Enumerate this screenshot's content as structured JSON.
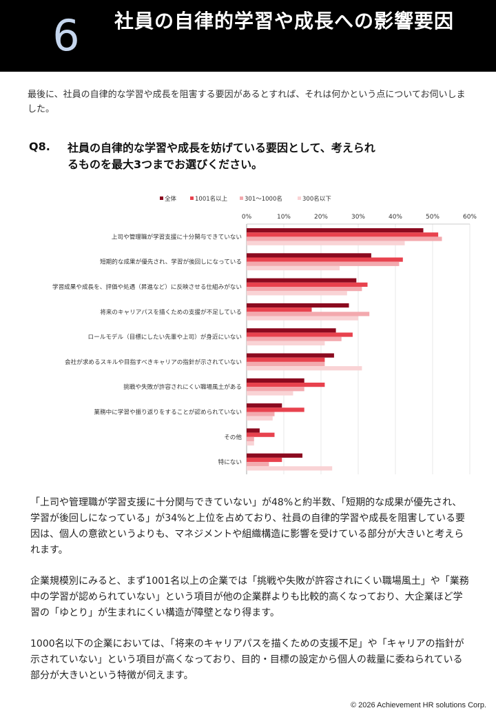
{
  "header": {
    "number": "6",
    "title": "社員の自律的学習や成長への影響要因"
  },
  "intro": "最後に、社員の自律的な学習や成長を阻害する要因があるとすれば、それは何かという点についてお伺いしました。",
  "question": {
    "number": "Q8.",
    "text": "社員の自律的な学習や成長を妨げている要因として、考えられるものを最大3つまでお選びください。"
  },
  "colors": {
    "all": "#8b0a1f",
    "large": "#e8424e",
    "mid": "#f3a9ae",
    "small": "#f9d3d5"
  },
  "chart_data": {
    "type": "bar",
    "orientation": "horizontal",
    "xlim": [
      0,
      60
    ],
    "xticks": [
      "0%",
      "10%",
      "20%",
      "30%",
      "40%",
      "50%",
      "60%"
    ],
    "legend_position": "top",
    "categories": [
      "上司や管理職が学習支援に十分関与できていない",
      "短期的な成果が優先され、学習が後回しになっている",
      "学習成果や成長を、評価や処遇（昇進など）に反映させる仕組みがない",
      "将来のキャリアパスを描くための支援が不足している",
      "ロールモデル（目標にしたい先輩や上司）が身近にいない",
      "会社が求めるスキルや目指すべきキャリアの指針が示されていない",
      "挑戦や失敗が許容されにくい職場風土がある",
      "業務中に学習や振り返りをすることが認められていない",
      "その他",
      "特にない"
    ],
    "series": [
      {
        "name": "全体",
        "color": "#8b0a1f",
        "values": [
          47.5,
          33.5,
          29.5,
          27.5,
          24,
          23.5,
          15.5,
          9.5,
          3.5,
          15
        ]
      },
      {
        "name": "1001名以上",
        "color": "#e8424e",
        "values": [
          51.5,
          42,
          32.5,
          17.5,
          28.5,
          21,
          21,
          15.5,
          7.5,
          9.5
        ]
      },
      {
        "name": "301〜1000名",
        "color": "#f3a9ae",
        "values": [
          52.5,
          41,
          31,
          33,
          25.5,
          21,
          15.5,
          7.5,
          2,
          6
        ]
      },
      {
        "name": "300名以下",
        "color": "#f9d3d5",
        "values": [
          42.5,
          25,
          27,
          30,
          21,
          31,
          12.5,
          7,
          2,
          23
        ]
      }
    ]
  },
  "paragraphs": [
    "「上司や管理職が学習支援に十分関与できていない」が48%と約半数、「短期的な成果が優先され、学習が後回しになっている」が34%と上位を占めており、社員の自律的学習や成長を阻害している要因は、個人の意欲というよりも、マネジメントや組織構造に影響を受けている部分が大きいと考えられます。",
    "企業規模別にみると、まず1001名以上の企業では「挑戦や失敗が許容されにくい職場風土」や「業務中の学習が認められていない」という項目が他の企業群よりも比較的高くなっており、大企業ほど学習の「ゆとり」が生まれにくい構造が障壁となり得ます。",
    "1000名以下の企業においては、「将来のキャリアパスを描くための支援不足」や「キャリアの指針が示されていない」という項目が高くなっており、目的・目標の設定から個人の裁量に委ねられている部分が大きいという特徴が伺えます。"
  ],
  "footer": "© 2026 Achievement HR solutions Corp."
}
